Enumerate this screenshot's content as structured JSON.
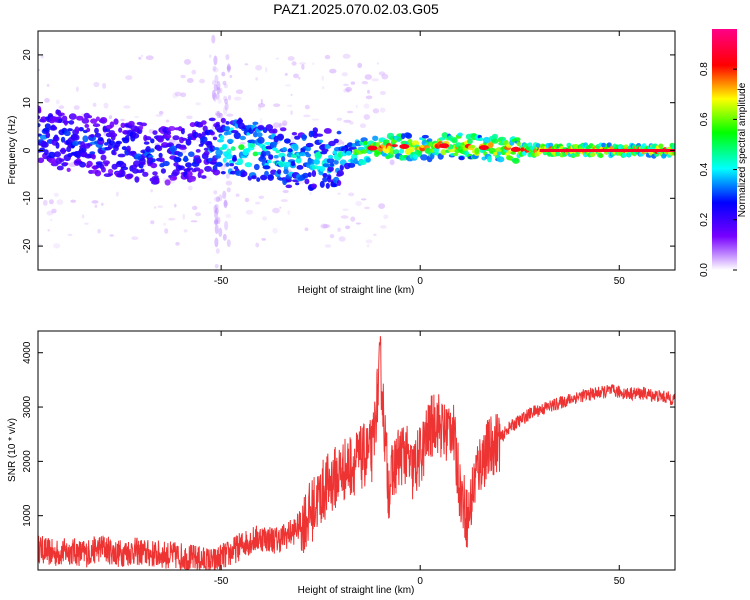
{
  "title": "PAZ1.2025.070.02.03.G05",
  "chart_data": [
    {
      "type": "heatmap",
      "xlabel": "Height of straight line (km)",
      "ylabel": "Frequency (Hz)",
      "xlim": [
        -96,
        64
      ],
      "ylim": [
        -25,
        25
      ],
      "xticks": [
        -50,
        0,
        50
      ],
      "yticks": [
        -20,
        -10,
        0,
        10,
        20
      ],
      "colorbar": {
        "label": "Normalized spectral amplitude",
        "range": [
          0.0,
          0.96
        ],
        "ticks": [
          0.0,
          0.2,
          0.4,
          0.6,
          0.8
        ],
        "colormap": [
          "#ffffff",
          "#7700ff",
          "#0000ff",
          "#00ffff",
          "#00ff00",
          "#ffff00",
          "#ff0000",
          "#ff0088"
        ]
      },
      "ridge": [
        {
          "x": -96,
          "f": 3.0,
          "a": 0.35
        },
        {
          "x": -90,
          "f": 2.0,
          "a": 0.35
        },
        {
          "x": -84,
          "f": 1.5,
          "a": 0.35
        },
        {
          "x": -78,
          "f": 0.5,
          "a": 0.35
        },
        {
          "x": -72,
          "f": 0.0,
          "a": 0.35
        },
        {
          "x": -66,
          "f": -1.0,
          "a": 0.35
        },
        {
          "x": -60,
          "f": -1.0,
          "a": 0.35
        },
        {
          "x": -54,
          "f": 0.5,
          "a": 0.35
        },
        {
          "x": -48,
          "f": 0.8,
          "a": 0.55
        },
        {
          "x": -42,
          "f": 0.0,
          "a": 0.55
        },
        {
          "x": -36,
          "f": -1.0,
          "a": 0.5
        },
        {
          "x": -30,
          "f": -2.0,
          "a": 0.5
        },
        {
          "x": -24,
          "f": -1.5,
          "a": 0.5
        },
        {
          "x": -18,
          "f": -1.0,
          "a": 0.5
        },
        {
          "x": -12,
          "f": 0.5,
          "a": 0.85
        },
        {
          "x": -6,
          "f": 1.0,
          "a": 0.85
        },
        {
          "x": 0,
          "f": 0.5,
          "a": 0.8
        },
        {
          "x": 6,
          "f": 1.0,
          "a": 0.85
        },
        {
          "x": 12,
          "f": 0.8,
          "a": 0.85
        },
        {
          "x": 18,
          "f": 0.5,
          "a": 0.85
        },
        {
          "x": 24,
          "f": 0.2,
          "a": 0.85
        },
        {
          "x": 30,
          "f": 0.0,
          "a": 0.9
        },
        {
          "x": 40,
          "f": 0.0,
          "a": 0.9
        },
        {
          "x": 50,
          "f": 0.0,
          "a": 0.9
        },
        {
          "x": 64,
          "f": 0.0,
          "a": 0.9
        }
      ]
    },
    {
      "type": "line",
      "xlabel": "Height of straight line (km)",
      "ylabel": "SNR (10 * v/v)",
      "xlim": [
        -96,
        64
      ],
      "ylim": [
        0,
        4400
      ],
      "xticks": [
        -50,
        0,
        50
      ],
      "yticks": [
        1000,
        2000,
        3000,
        4000
      ],
      "line_color": "#ee3333",
      "series": [
        {
          "x": [
            -96,
            -92,
            -88,
            -84,
            -80,
            -76,
            -72,
            -68,
            -64,
            -60,
            -56,
            -52,
            -48,
            -44,
            -40,
            -36,
            -32,
            -28,
            -24,
            -20,
            -16,
            -12,
            -10,
            -8,
            -6,
            -4,
            -2,
            0,
            2,
            4,
            6,
            8,
            10,
            12,
            14,
            16,
            18,
            20,
            22,
            24,
            28,
            32,
            36,
            40,
            44,
            48,
            52,
            56,
            60,
            64
          ],
          "y": [
            400,
            300,
            350,
            300,
            420,
            300,
            350,
            300,
            280,
            250,
            200,
            150,
            300,
            500,
            600,
            550,
            700,
            1000,
            1500,
            1800,
            2000,
            2200,
            3800,
            1500,
            2000,
            2200,
            1800,
            2100,
            2500,
            2800,
            2500,
            2700,
            1500,
            900,
            1800,
            2100,
            2300,
            2400,
            2600,
            2700,
            2900,
            3000,
            3100,
            3200,
            3250,
            3300,
            3250,
            3250,
            3200,
            3150
          ]
        }
      ]
    }
  ]
}
